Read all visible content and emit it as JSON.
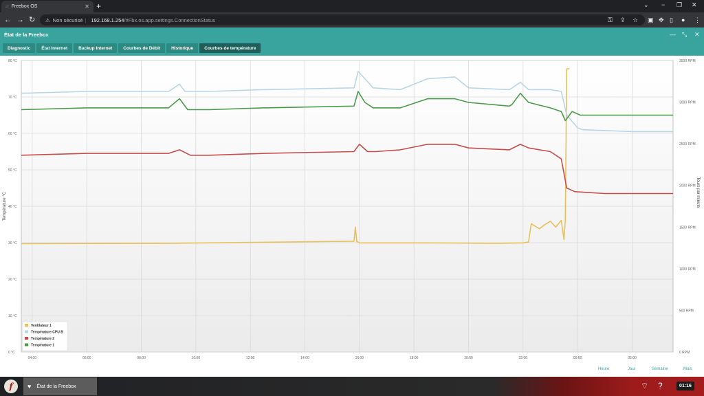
{
  "browser": {
    "tab_title": "Freebox OS",
    "security_label": "Non sécurisé",
    "url_host": "192.168.1.254",
    "url_path": "/#Fbx.os.app.settings.ConnectionStatus"
  },
  "app": {
    "window_title": "État de la Freebox",
    "tabs": [
      {
        "label": "Diagnostic"
      },
      {
        "label": "État Internet"
      },
      {
        "label": "Backup Internet"
      },
      {
        "label": "Courbes de Débit"
      },
      {
        "label": "Historique"
      },
      {
        "label": "Courbes de température"
      }
    ],
    "active_tab": "Courbes de température",
    "range_links": [
      "Heure",
      "Jour",
      "Semaine",
      "Mois"
    ]
  },
  "chart_data": {
    "type": "line",
    "title": "",
    "xlabel": "",
    "ylabel": "Température °C",
    "y2label": "Tours par minute",
    "x_ticks": [
      "04:00",
      "06:00",
      "08:00",
      "10:00",
      "12:00",
      "14:00",
      "16:00",
      "18:00",
      "20:00",
      "22:00",
      "00:00",
      "02:00"
    ],
    "xlim_hours": [
      3.6,
      27.5
    ],
    "ylim": [
      0,
      80
    ],
    "y_ticks": [
      "0 °C",
      "10 °C",
      "20 °C",
      "30 °C",
      "40 °C",
      "50 °C",
      "60 °C",
      "70 °C",
      "80 °C"
    ],
    "y2lim": [
      0,
      3500
    ],
    "y2_ticks": [
      "0 RPM",
      "500 RPM",
      "1000 RPM",
      "1500 RPM",
      "2000 RPM",
      "2500 RPM",
      "3000 RPM",
      "3500 RPM"
    ],
    "grid": true,
    "legend_position": "bottom-left",
    "series": [
      {
        "name": "Ventilateur 1",
        "axis": "right",
        "color": "#e8c05a",
        "x": [
          3.6,
          9.0,
          15.8,
          15.85,
          15.9,
          16.0,
          18.5,
          21.0,
          22.0,
          22.2,
          22.3,
          22.6,
          22.8,
          23.0,
          23.2,
          23.4,
          23.5,
          23.55,
          23.6,
          23.7
        ],
        "y": [
          1300,
          1305,
          1330,
          1500,
          1330,
          1310,
          1310,
          1305,
          1310,
          1320,
          1540,
          1480,
          1530,
          1570,
          1500,
          1580,
          1350,
          1580,
          3400,
          3400
        ]
      },
      {
        "name": "Température CPU B",
        "axis": "left",
        "color": "#b9d6e6",
        "x": [
          3.6,
          6.0,
          9.0,
          9.4,
          9.6,
          10.5,
          12.5,
          15.8,
          15.95,
          16.2,
          16.5,
          17.5,
          18.5,
          19.5,
          20.0,
          21.5,
          21.6,
          21.9,
          22.2,
          23.0,
          23.4,
          23.6,
          24.0,
          24.2,
          26.0,
          27.5
        ],
        "y": [
          71,
          71.5,
          71.5,
          73.5,
          71.5,
          71.5,
          72,
          72.5,
          77,
          75,
          72.5,
          72,
          75,
          75.5,
          72.5,
          72,
          72.5,
          74,
          72,
          72,
          71.5,
          65,
          61.5,
          61,
          60.5,
          60.5
        ]
      },
      {
        "name": "Température 2",
        "axis": "left",
        "color": "#c44d4d",
        "x": [
          3.6,
          6.0,
          9.0,
          9.4,
          9.8,
          10.5,
          12.5,
          15.8,
          16.0,
          16.3,
          16.6,
          17.5,
          18.5,
          19.5,
          20.0,
          21.5,
          21.9,
          22.2,
          23.0,
          23.4,
          23.6,
          23.9,
          25.0,
          27.5
        ],
        "y": [
          54,
          54.5,
          54.5,
          55.5,
          54,
          54,
          54.5,
          55,
          57,
          55,
          55,
          55.5,
          57,
          57,
          56,
          55.5,
          57,
          56,
          55,
          53,
          45,
          44,
          43.5,
          43.5
        ]
      },
      {
        "name": "Température 1",
        "axis": "left",
        "color": "#4a9a4a",
        "x": [
          3.6,
          6.0,
          9.0,
          9.4,
          9.7,
          10.5,
          12.5,
          15.8,
          15.95,
          16.2,
          16.5,
          17.5,
          18.5,
          19.5,
          20.0,
          21.5,
          21.6,
          21.9,
          22.2,
          23.0,
          23.4,
          23.55,
          23.8,
          24.1,
          26.0,
          27.5
        ],
        "y": [
          66.5,
          67,
          67,
          69.5,
          66.5,
          66.5,
          67,
          67.5,
          71.5,
          68.5,
          67,
          67,
          69.5,
          69.5,
          68.5,
          67.5,
          68,
          71,
          68.5,
          67,
          66,
          63.5,
          66,
          65,
          65,
          65
        ]
      }
    ]
  }
}
